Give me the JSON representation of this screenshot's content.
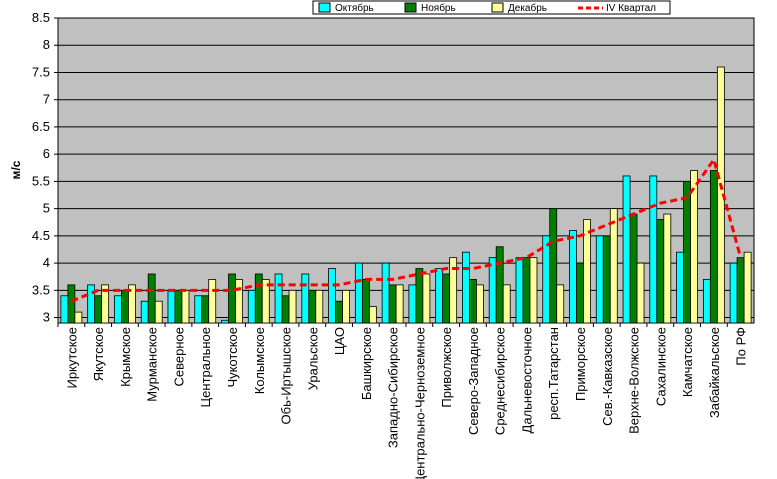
{
  "chart_data": {
    "type": "bar",
    "title": "",
    "ylabel": "м/с",
    "xlabel": "",
    "ylim": [
      2.9,
      8.5
    ],
    "yticks": [
      "3",
      "3.5",
      "4",
      "4.5",
      "5",
      "5.5",
      "6",
      "6.5",
      "7",
      "7.5",
      "8",
      "8.5"
    ],
    "grid": true,
    "legend_position": "top-right",
    "categories": [
      "Иркутское",
      "Якутское",
      "Крымское",
      "Мурманское",
      "Северное",
      "Центральное",
      "Чукотское",
      "Колымское",
      "Обь-Иртышское",
      "Уральское",
      "ЦАО",
      "Башкирское",
      "Западно-Сибирское",
      "Центрально-Черноземное",
      "Приволжское",
      "Северо-Западное",
      "Среднесибирское",
      "Дальневосточное",
      "респ.Татарстан",
      "Приморское",
      "Сев.-Кавказское",
      "Верхне-Волжское",
      "Сахалинское",
      "Камчатское",
      "Забайкальское",
      "По РФ"
    ],
    "series": [
      {
        "name": "Октябрь",
        "kind": "bar",
        "color": "#00ffff",
        "values": [
          3.4,
          3.6,
          3.4,
          3.3,
          3.5,
          3.4,
          2.95,
          3.5,
          3.8,
          3.8,
          3.9,
          4.0,
          4.0,
          3.6,
          3.9,
          4.2,
          4.1,
          4.1,
          4.5,
          4.6,
          4.5,
          5.6,
          5.6,
          4.2,
          3.7,
          4.0
        ]
      },
      {
        "name": "Ноябрь",
        "kind": "bar",
        "color": "#007f00",
        "values": [
          3.6,
          3.4,
          3.5,
          3.8,
          3.5,
          3.4,
          3.8,
          3.8,
          3.4,
          3.5,
          3.3,
          3.7,
          3.6,
          3.9,
          3.8,
          3.7,
          4.3,
          4.1,
          5.0,
          4.0,
          4.5,
          4.9,
          4.8,
          5.5,
          5.7,
          4.1
        ]
      },
      {
        "name": "Декабрь",
        "kind": "bar",
        "color": "#ffff99",
        "values": [
          3.1,
          3.6,
          3.6,
          3.3,
          3.5,
          3.7,
          3.7,
          3.7,
          3.5,
          3.5,
          3.5,
          3.2,
          3.6,
          3.8,
          4.1,
          3.6,
          3.6,
          4.1,
          3.6,
          4.8,
          5.0,
          4.0,
          4.9,
          5.7,
          7.6,
          4.2
        ]
      },
      {
        "name": "IV Квартал",
        "kind": "line",
        "color": "#ff0000",
        "values": [
          3.3,
          3.5,
          3.5,
          3.5,
          3.5,
          3.5,
          3.5,
          3.6,
          3.6,
          3.6,
          3.6,
          3.7,
          3.7,
          3.8,
          3.9,
          3.9,
          4.0,
          4.1,
          4.4,
          4.5,
          4.7,
          4.9,
          5.1,
          5.2,
          5.9,
          4.1
        ]
      }
    ]
  }
}
